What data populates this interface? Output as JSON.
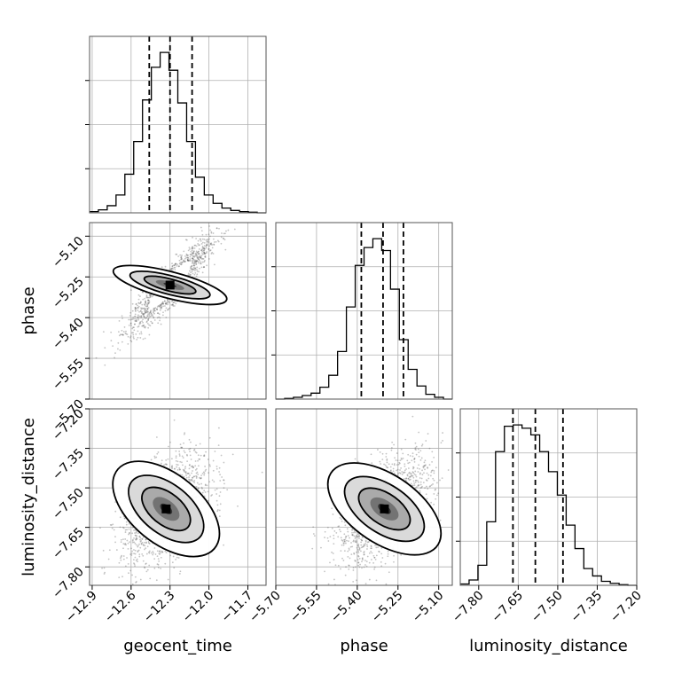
{
  "chart_data": {
    "type": "corner",
    "grid": true,
    "parameters": [
      {
        "name": "geocent_time",
        "range": [
          -12.92,
          -11.56
        ],
        "ticks": [
          "−12.9",
          "−12.6",
          "−12.3",
          "−12.0",
          "−11.7"
        ],
        "tick_values": [
          -12.9,
          -12.6,
          -12.3,
          -12.0,
          -11.7
        ],
        "quantiles": [
          -12.46,
          -12.3,
          -12.13
        ],
        "histogram": {
          "edges_start": -12.92,
          "bin_width": 0.068,
          "counts": [
            2,
            5,
            12,
            30,
            65,
            120,
            190,
            245,
            270,
            240,
            185,
            120,
            60,
            30,
            16,
            8,
            4,
            2,
            1,
            0
          ]
        }
      },
      {
        "name": "phase",
        "range": [
          -5.7,
          -5.05
        ],
        "ticks": [
          "−5.70",
          "−5.55",
          "−5.40",
          "−5.25",
          "−5.10"
        ],
        "tick_values": [
          -5.7,
          -5.55,
          -5.4,
          -5.25,
          -5.1
        ],
        "quantiles": [
          -5.385,
          -5.305,
          -5.23
        ],
        "histogram": {
          "edges_start": -5.7,
          "bin_width": 0.0325,
          "counts": [
            0,
            1,
            3,
            6,
            10,
            20,
            40,
            80,
            155,
            225,
            255,
            270,
            250,
            185,
            100,
            50,
            22,
            8,
            3,
            0
          ]
        }
      },
      {
        "name": "luminosity_distance",
        "range": [
          -7.87,
          -7.2
        ],
        "ticks": [
          "−7.80",
          "−7.65",
          "−7.50",
          "−7.35",
          "−7.20"
        ],
        "tick_values": [
          -7.8,
          -7.65,
          -7.5,
          -7.35,
          -7.2
        ],
        "quantiles": [
          -7.67,
          -7.585,
          -7.48
        ],
        "histogram": {
          "edges_start": -7.87,
          "bin_width": 0.0335,
          "counts": [
            2,
            8,
            30,
            95,
            200,
            238,
            240,
            235,
            225,
            200,
            170,
            135,
            90,
            55,
            25,
            14,
            6,
            3,
            1,
            0
          ]
        }
      }
    ],
    "pairs": [
      {
        "x": "geocent_time",
        "y": "phase",
        "center": [
          -12.3,
          -5.28
        ],
        "sd": [
          0.14,
          0.075
        ],
        "corr": 0.9
      },
      {
        "x": "geocent_time",
        "y": "luminosity_distance",
        "center": [
          -12.33,
          -7.58
        ],
        "sd": [
          0.16,
          0.095
        ],
        "corr": 0.5
      },
      {
        "x": "phase",
        "y": "luminosity_distance",
        "center": [
          -5.3,
          -7.58
        ],
        "sd": [
          0.08,
          0.095
        ],
        "corr": 0.55
      }
    ]
  }
}
